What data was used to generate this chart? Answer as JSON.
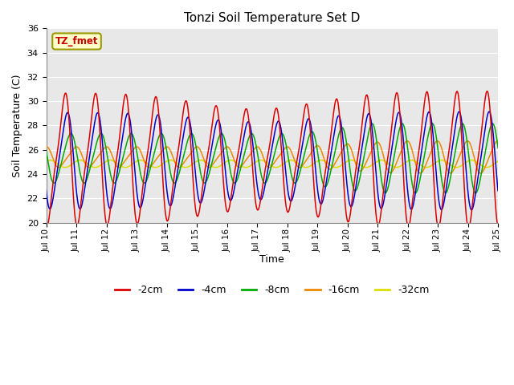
{
  "title": "Tonzi Soil Temperature Set D",
  "xlabel": "Time",
  "ylabel": "Soil Temperature (C)",
  "xlim": [
    0,
    360
  ],
  "ylim": [
    20,
    36
  ],
  "yticks": [
    20,
    22,
    24,
    26,
    28,
    30,
    32,
    34,
    36
  ],
  "xtick_labels": [
    "Jul 10",
    "Jul 11",
    "Jul 12",
    "Jul 13",
    "Jul 14",
    "Jul 15",
    "Jul 16",
    "Jul 17",
    "Jul 18",
    "Jul 19",
    "Jul 20",
    "Jul 21",
    "Jul 22",
    "Jul 23",
    "Jul 24",
    "Jul 25"
  ],
  "xtick_positions": [
    0,
    24,
    48,
    72,
    96,
    120,
    144,
    168,
    192,
    216,
    240,
    264,
    288,
    312,
    336,
    360
  ],
  "colors": {
    "-2cm": "#dd0000",
    "-4cm": "#0000cc",
    "-8cm": "#00aa00",
    "-16cm": "#ee8800",
    "-32cm": "#dddd00"
  },
  "legend_label": "TZ_fmet",
  "background_color": "#e8e8e8",
  "grid_color": "#ffffff",
  "figsize": [
    6.4,
    4.8
  ],
  "dpi": 100
}
